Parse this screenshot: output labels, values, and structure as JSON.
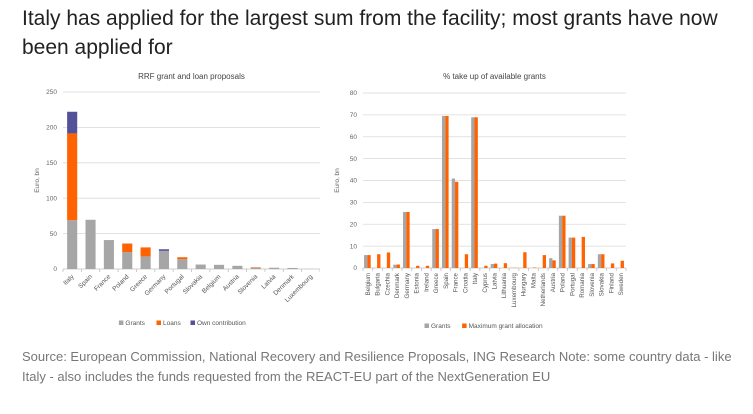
{
  "headline": "Italy has applied for the largest sum from the facility; most grants have now been applied for",
  "source": "Source: European Commission, National Recovery and Resilience Proposals, ING Research Note: some country data - like Italy - also includes the funds requested from the REACT-EU part of the NextGeneration EU",
  "colors": {
    "grants": "#a6a6a6",
    "loans": "#ff6200",
    "own": "#525199",
    "grid": "#d9d9d9",
    "axis": "#bfbfbf"
  },
  "chart_data": [
    {
      "type": "bar",
      "stacked": true,
      "title": "RRF grant and loan proposals",
      "xlabel": "",
      "ylabel": "Euro, bn",
      "ylim": [
        0,
        250
      ],
      "yticks": [
        0,
        50,
        100,
        150,
        200,
        250
      ],
      "grid": true,
      "legend_position": "bottom",
      "categories": [
        "Italy",
        "Spain",
        "France",
        "Poland",
        "Greece",
        "Germany",
        "Portugal",
        "Slovakia",
        "Belgium",
        "Austria",
        "Slovenia",
        "Latvia",
        "Denmark",
        "Luxembourg"
      ],
      "series": [
        {
          "name": "Grants",
          "color": "#a6a6a6",
          "values": [
            68.9,
            69.5,
            40.9,
            23.9,
            17.8,
            25.6,
            13.9,
            6.3,
            5.9,
            4.5,
            1.8,
            1.8,
            1.5,
            0.1
          ]
        },
        {
          "name": "Loans",
          "color": "#ff6200",
          "values": [
            122.6,
            0,
            0,
            12.1,
            12.7,
            0,
            2.7,
            0,
            0,
            0,
            0.7,
            0,
            0,
            0
          ]
        },
        {
          "name": "Own contribution",
          "color": "#525199",
          "values": [
            30.6,
            0,
            0,
            0,
            0,
            2.3,
            0,
            0,
            0,
            0,
            0,
            0,
            0,
            0
          ]
        }
      ]
    },
    {
      "type": "bar",
      "stacked": false,
      "title": "% take up of available grants",
      "xlabel": "",
      "ylabel": "Euro, bn",
      "ylim": [
        0,
        80
      ],
      "yticks": [
        0,
        10,
        20,
        30,
        40,
        50,
        60,
        70,
        80
      ],
      "grid": true,
      "legend_position": "bottom",
      "categories": [
        "Belgium",
        "Bulgaria",
        "Czechia",
        "Denmark",
        "Germany",
        "Estonia",
        "Ireland",
        "Greece",
        "Spain",
        "France",
        "Croatia",
        "Italy",
        "Cyprus",
        "Latvia",
        "Lithuania",
        "Luxembourg",
        "Hungary",
        "Malta",
        "Netherlands",
        "Austria",
        "Poland",
        "Portugal",
        "Romania",
        "Slovenia",
        "Slovakia",
        "Finland",
        "Sweden"
      ],
      "series": [
        {
          "name": "Grants",
          "color": "#a6a6a6",
          "values": [
            5.9,
            0,
            0,
            1.5,
            25.6,
            0,
            0,
            17.8,
            69.5,
            40.9,
            0,
            68.9,
            0,
            1.8,
            0,
            0.1,
            0,
            0,
            0,
            4.5,
            23.9,
            13.9,
            0,
            1.8,
            6.3,
            0,
            0
          ]
        },
        {
          "name": "Maximum grant allocation",
          "color": "#ff6200",
          "values": [
            5.9,
            6.3,
            7.1,
            1.6,
            25.6,
            1.0,
            1.0,
            17.8,
            69.5,
            39.4,
            6.3,
            68.9,
            1.0,
            2.0,
            2.2,
            0.1,
            7.2,
            0.2,
            5.9,
            3.5,
            23.9,
            13.9,
            14.2,
            1.8,
            6.3,
            2.1,
            3.3
          ]
        }
      ]
    }
  ]
}
